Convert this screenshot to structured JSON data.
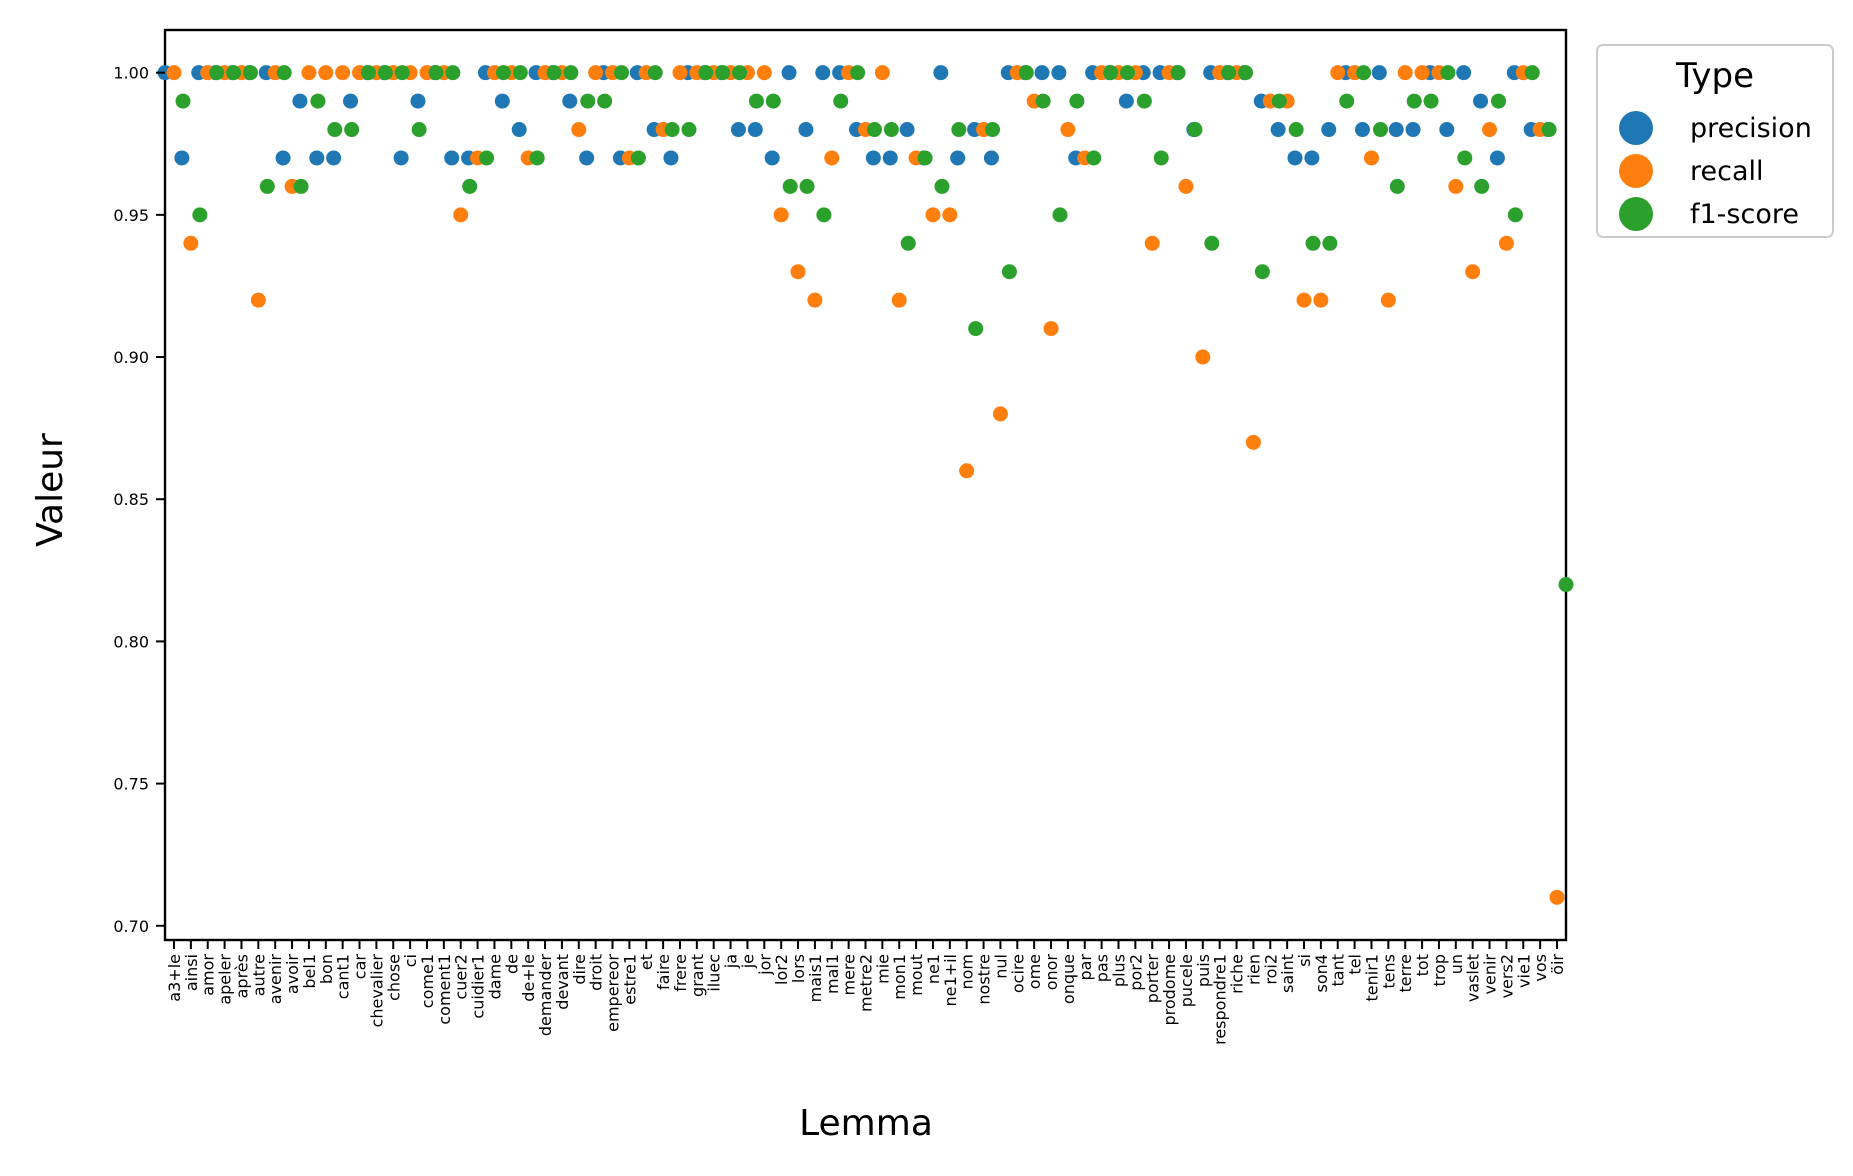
{
  "chart_data": {
    "type": "scatter",
    "title": "",
    "xlabel": "Lemma",
    "ylabel": "Valeur",
    "ylim": [
      0.695,
      1.015
    ],
    "yticks": [
      0.7,
      0.75,
      0.8,
      0.85,
      0.9,
      0.95,
      1.0
    ],
    "ytick_labels": [
      "0.70",
      "0.75",
      "0.80",
      "0.85",
      "0.90",
      "0.95",
      "1.00"
    ],
    "grid": false,
    "legend": {
      "title": "Type",
      "placement": "top-right outside"
    },
    "categories": [
      "a3+le",
      "ainsi",
      "amor",
      "apeler",
      "après",
      "autre",
      "avenir",
      "avoir",
      "bel1",
      "bon",
      "cant1",
      "car",
      "chevalier",
      "chose",
      "ci",
      "come1",
      "coment1",
      "cuer2",
      "cuidier1",
      "dame",
      "de",
      "de+le",
      "demander",
      "devant",
      "dire",
      "droit",
      "empereor",
      "estre1",
      "et",
      "faire",
      "frere",
      "grant",
      "iluec",
      "ja",
      "je",
      "jor",
      "lor2",
      "lors",
      "mais1",
      "mal1",
      "mere",
      "metre2",
      "mie",
      "mon1",
      "mout",
      "ne1",
      "ne1+il",
      "nom",
      "nostre",
      "nul",
      "ocire",
      "ome",
      "onor",
      "onque",
      "par",
      "pas",
      "plus",
      "por2",
      "porter",
      "prodome",
      "pucele",
      "puis",
      "respondre1",
      "riche",
      "rien",
      "roi2",
      "saint",
      "si",
      "son4",
      "tant",
      "tel",
      "tenir1",
      "tens",
      "terre",
      "tot",
      "trop",
      "un",
      "vaslet",
      "venir",
      "vers2",
      "vie1",
      "vos",
      "öir"
    ],
    "series": [
      {
        "name": "precision",
        "color": "#1f77b4",
        "values": [
          1.0,
          0.97,
          1.0,
          1.0,
          1.0,
          1.0,
          1.0,
          0.97,
          0.99,
          0.97,
          0.97,
          0.99,
          1.0,
          1.0,
          0.97,
          0.99,
          1.0,
          0.97,
          0.97,
          1.0,
          0.99,
          0.98,
          1.0,
          1.0,
          0.99,
          0.97,
          1.0,
          0.97,
          1.0,
          0.98,
          0.97,
          1.0,
          1.0,
          1.0,
          0.98,
          0.98,
          0.97,
          1.0,
          0.98,
          1.0,
          1.0,
          0.98,
          0.97,
          0.97,
          0.98,
          0.97,
          1.0,
          0.97,
          0.98,
          0.97,
          1.0,
          1.0,
          1.0,
          1.0,
          0.97,
          1.0,
          1.0,
          0.99,
          1.0,
          1.0,
          1.0,
          0.98,
          1.0,
          1.0,
          1.0,
          0.99,
          0.98,
          0.97,
          0.97,
          0.98,
          1.0,
          0.98,
          1.0,
          0.98,
          0.98,
          1.0,
          0.98,
          1.0,
          0.99,
          0.97,
          1.0,
          0.98,
          0.98
        ]
      },
      {
        "name": "recall",
        "color": "#ff7f0e",
        "values": [
          1.0,
          0.94,
          1.0,
          1.0,
          1.0,
          0.92,
          1.0,
          0.96,
          1.0,
          1.0,
          1.0,
          1.0,
          1.0,
          1.0,
          1.0,
          1.0,
          1.0,
          0.95,
          0.97,
          1.0,
          1.0,
          0.97,
          1.0,
          1.0,
          0.98,
          1.0,
          1.0,
          0.97,
          1.0,
          0.98,
          1.0,
          1.0,
          1.0,
          1.0,
          1.0,
          1.0,
          0.95,
          0.93,
          0.92,
          0.97,
          1.0,
          0.98,
          1.0,
          0.92,
          0.97,
          0.95,
          0.95,
          0.86,
          0.98,
          0.88,
          1.0,
          0.99,
          0.91,
          0.98,
          0.97,
          1.0,
          1.0,
          1.0,
          0.94,
          1.0,
          0.96,
          0.9,
          1.0,
          1.0,
          0.87,
          0.99,
          0.99,
          0.92,
          0.92,
          1.0,
          1.0,
          0.97,
          0.92,
          1.0,
          1.0,
          1.0,
          0.96,
          0.93,
          0.98,
          0.94,
          1.0,
          0.98,
          0.71
        ]
      },
      {
        "name": "f1-score",
        "color": "#2ca02c",
        "values": [
          0.99,
          0.95,
          1.0,
          1.0,
          1.0,
          0.96,
          1.0,
          0.96,
          0.99,
          0.98,
          0.98,
          1.0,
          1.0,
          1.0,
          0.98,
          1.0,
          1.0,
          0.96,
          0.97,
          1.0,
          1.0,
          0.97,
          1.0,
          1.0,
          0.99,
          0.99,
          1.0,
          0.97,
          1.0,
          0.98,
          0.98,
          1.0,
          1.0,
          1.0,
          0.99,
          0.99,
          0.96,
          0.96,
          0.95,
          0.99,
          1.0,
          0.98,
          0.98,
          0.94,
          0.97,
          0.96,
          0.98,
          0.91,
          0.98,
          0.93,
          1.0,
          0.99,
          0.95,
          0.99,
          0.97,
          1.0,
          1.0,
          0.99,
          0.97,
          1.0,
          0.98,
          0.94,
          1.0,
          1.0,
          0.93,
          0.99,
          0.98,
          0.94,
          0.94,
          0.99,
          1.0,
          0.98,
          0.96,
          0.99,
          0.99,
          1.0,
          0.97,
          0.96,
          0.99,
          0.95,
          1.0,
          0.98,
          0.82
        ]
      }
    ]
  }
}
